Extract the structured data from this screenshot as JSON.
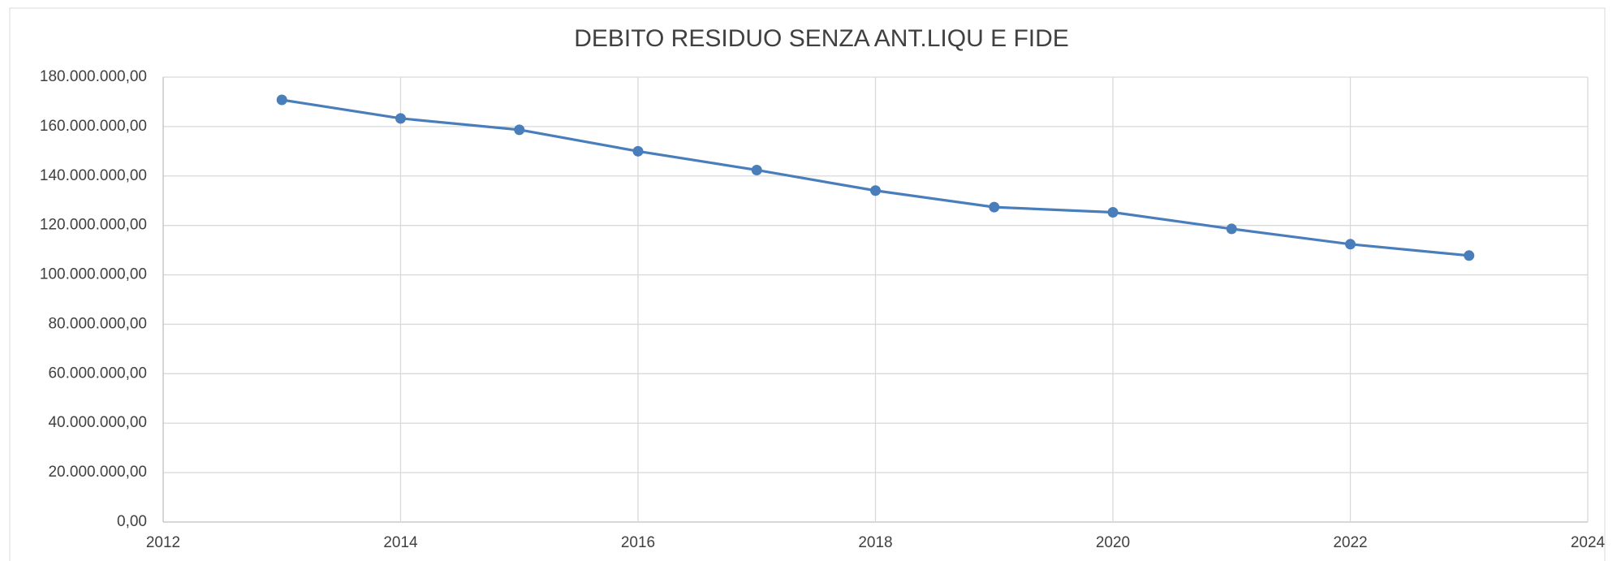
{
  "chart_data": {
    "type": "line",
    "title": "DEBITO RESIDUO SENZA ANT.LIQU E FIDE",
    "x": [
      2013,
      2014,
      2015,
      2016,
      2017,
      2018,
      2019,
      2020,
      2021,
      2022,
      2023
    ],
    "series": [
      {
        "name": "DEBITO RESIDUO",
        "color": "#4a7ebb",
        "values": [
          170800000,
          163300000,
          158700000,
          150000000,
          142400000,
          134100000,
          127400000,
          125300000,
          118600000,
          112400000,
          107800000
        ]
      }
    ],
    "xlim": [
      2012,
      2024
    ],
    "xticks": [
      2012,
      2014,
      2016,
      2018,
      2020,
      2022,
      2024
    ],
    "ylim": [
      0,
      180000000
    ],
    "yticks": [
      {
        "value": 0,
        "label": "0,00"
      },
      {
        "value": 20000000,
        "label": "20.000.000,00"
      },
      {
        "value": 40000000,
        "label": "40.000.000,00"
      },
      {
        "value": 60000000,
        "label": "60.000.000,00"
      },
      {
        "value": 80000000,
        "label": "80.000.000,00"
      },
      {
        "value": 100000000,
        "label": "100.000.000,00"
      },
      {
        "value": 120000000,
        "label": "120.000.000,00"
      },
      {
        "value": 140000000,
        "label": "140.000.000,00"
      },
      {
        "value": 160000000,
        "label": "160.000.000,00"
      },
      {
        "value": 180000000,
        "label": "180.000.000,00"
      }
    ],
    "grid": true
  }
}
